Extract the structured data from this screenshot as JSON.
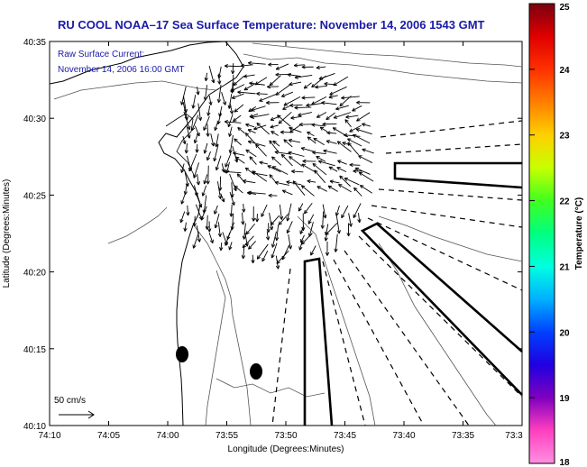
{
  "chart_data": {
    "type": "map",
    "title": "RU COOL  NOAA–17  Sea Surface Temperature:  November 14, 2006 1543 GMT",
    "annotation_line1": "Raw Surface Current:",
    "annotation_line2": "November 14, 2006 16:00 GMT",
    "xlabel": "Longitude (Degrees:Minutes)",
    "ylabel": "Latitude (Degrees:Minutes)",
    "x_ticks": [
      "74:10",
      "74:05",
      "74:00",
      "73:55",
      "73:50",
      "73:45",
      "73:40",
      "73:35",
      "73:3"
    ],
    "y_ticks": [
      "40:35",
      "40:30",
      "40:25",
      "40:20",
      "40:15",
      "40:10"
    ],
    "scale_label": "50 cm/s",
    "colorbar": {
      "label": "Temperature (°C)",
      "ticks": [
        "25",
        "24",
        "23",
        "22",
        "21",
        "20",
        "19",
        "18"
      ],
      "colors": [
        "#7a0010",
        "#e00000",
        "#ff3000",
        "#ff7f00",
        "#ffd000",
        "#c8ff00",
        "#40ff20",
        "#00ff80",
        "#00ffe0",
        "#00b0ff",
        "#0040ff",
        "#2000e0",
        "#8000c0",
        "#ff40c0",
        "#ff90e0"
      ]
    },
    "grid": false,
    "legend": "right colorbar"
  }
}
